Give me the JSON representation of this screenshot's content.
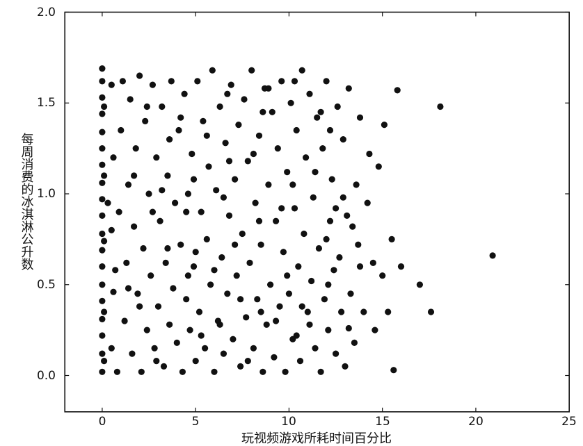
{
  "chart_data": {
    "type": "scatter",
    "title": "",
    "xlabel": "玩视频游戏所耗时间百分比",
    "ylabel": "每周消费的冰淇淋公升数",
    "xlim": [
      -2,
      25
    ],
    "ylim": [
      -0.2,
      2.0
    ],
    "xticks": [
      0,
      5,
      10,
      15,
      20,
      25
    ],
    "yticks": [
      0.0,
      0.5,
      1.0,
      1.5,
      2.0
    ],
    "xtick_labels": [
      "0",
      "5",
      "10",
      "15",
      "20",
      "25"
    ],
    "ytick_labels": [
      "0.0",
      "0.5",
      "1.0",
      "1.5",
      "2.0"
    ],
    "grid": false,
    "legend": "none",
    "marker_color": "#111111",
    "points": [
      [
        0.0,
        0.02
      ],
      [
        0.0,
        0.12
      ],
      [
        0.0,
        0.22
      ],
      [
        0.0,
        0.31
      ],
      [
        0.0,
        0.41
      ],
      [
        0.0,
        0.5
      ],
      [
        0.0,
        0.6
      ],
      [
        0.0,
        0.69
      ],
      [
        0.0,
        0.78
      ],
      [
        0.0,
        0.88
      ],
      [
        0.0,
        0.97
      ],
      [
        0.0,
        1.06
      ],
      [
        0.0,
        1.16
      ],
      [
        0.0,
        1.25
      ],
      [
        0.0,
        1.34
      ],
      [
        0.0,
        1.44
      ],
      [
        0.0,
        1.53
      ],
      [
        0.0,
        1.62
      ],
      [
        0.0,
        1.69
      ],
      [
        0.1,
        0.08
      ],
      [
        0.1,
        0.35
      ],
      [
        0.1,
        0.74
      ],
      [
        0.1,
        1.1
      ],
      [
        0.1,
        1.48
      ],
      [
        0.5,
        0.15
      ],
      [
        0.6,
        0.46
      ],
      [
        0.5,
        0.8
      ],
      [
        0.6,
        1.2
      ],
      [
        0.5,
        1.6
      ],
      [
        0.8,
        0.02
      ],
      [
        0.9,
        0.9
      ],
      [
        1.0,
        1.35
      ],
      [
        1.2,
        0.3
      ],
      [
        1.3,
        0.62
      ],
      [
        1.4,
        1.05
      ],
      [
        1.5,
        1.52
      ],
      [
        1.6,
        0.12
      ],
      [
        1.7,
        0.82
      ],
      [
        1.8,
        1.25
      ],
      [
        1.9,
        0.45
      ],
      [
        2.0,
        1.65
      ],
      [
        2.1,
        0.02
      ],
      [
        2.2,
        0.7
      ],
      [
        2.3,
        1.4
      ],
      [
        2.4,
        0.25
      ],
      [
        2.5,
        1.0
      ],
      [
        2.6,
        0.55
      ],
      [
        2.7,
        1.6
      ],
      [
        2.8,
        0.15
      ],
      [
        2.9,
        1.2
      ],
      [
        3.0,
        0.38
      ],
      [
        3.1,
        0.85
      ],
      [
        3.2,
        1.48
      ],
      [
        3.3,
        0.05
      ],
      [
        3.4,
        0.62
      ],
      [
        3.5,
        1.1
      ],
      [
        3.6,
        0.28
      ],
      [
        3.7,
        1.62
      ],
      [
        3.8,
        0.48
      ],
      [
        3.9,
        0.95
      ],
      [
        4.0,
        0.18
      ],
      [
        4.1,
        1.35
      ],
      [
        4.2,
        0.72
      ],
      [
        4.3,
        0.02
      ],
      [
        4.4,
        1.55
      ],
      [
        4.5,
        0.42
      ],
      [
        4.6,
        1.0
      ],
      [
        4.7,
        0.25
      ],
      [
        4.8,
        1.22
      ],
      [
        4.9,
        0.6
      ],
      [
        5.0,
        0.08
      ],
      [
        5.1,
        1.62
      ],
      [
        5.2,
        0.35
      ],
      [
        5.3,
        0.9
      ],
      [
        5.4,
        1.4
      ],
      [
        5.5,
        0.15
      ],
      [
        5.6,
        0.75
      ],
      [
        5.7,
        1.15
      ],
      [
        5.8,
        0.5
      ],
      [
        5.9,
        1.68
      ],
      [
        6.0,
        0.02
      ],
      [
        6.1,
        1.02
      ],
      [
        6.2,
        0.3
      ],
      [
        6.3,
        1.48
      ],
      [
        6.4,
        0.65
      ],
      [
        6.5,
        0.12
      ],
      [
        6.6,
        1.28
      ],
      [
        6.7,
        0.45
      ],
      [
        6.8,
        0.88
      ],
      [
        6.9,
        1.6
      ],
      [
        7.0,
        0.2
      ],
      [
        7.1,
        1.08
      ],
      [
        7.2,
        0.55
      ],
      [
        7.3,
        1.38
      ],
      [
        7.4,
        0.05
      ],
      [
        7.5,
        0.78
      ],
      [
        7.6,
        1.52
      ],
      [
        7.7,
        0.32
      ],
      [
        7.8,
        1.18
      ],
      [
        7.9,
        0.62
      ],
      [
        8.0,
        1.68
      ],
      [
        8.1,
        0.15
      ],
      [
        8.2,
        0.95
      ],
      [
        8.3,
        0.42
      ],
      [
        8.4,
        1.32
      ],
      [
        8.5,
        0.72
      ],
      [
        8.6,
        0.02
      ],
      [
        8.7,
        1.58
      ],
      [
        8.8,
        0.28
      ],
      [
        8.9,
        1.05
      ],
      [
        9.0,
        0.5
      ],
      [
        9.1,
        1.45
      ],
      [
        9.2,
        0.1
      ],
      [
        9.3,
        0.85
      ],
      [
        9.4,
        1.25
      ],
      [
        9.5,
        0.38
      ],
      [
        9.6,
        1.62
      ],
      [
        9.7,
        0.68
      ],
      [
        9.8,
        0.02
      ],
      [
        9.9,
        1.12
      ],
      [
        10.0,
        0.45
      ],
      [
        10.1,
        1.5
      ],
      [
        10.2,
        0.2
      ],
      [
        10.3,
        0.92
      ],
      [
        10.4,
        1.35
      ],
      [
        10.5,
        0.6
      ],
      [
        10.6,
        0.08
      ],
      [
        10.7,
        1.68
      ],
      [
        10.8,
        0.78
      ],
      [
        10.9,
        1.2
      ],
      [
        11.0,
        0.35
      ],
      [
        11.1,
        1.55
      ],
      [
        11.2,
        0.52
      ],
      [
        11.3,
        0.98
      ],
      [
        11.4,
        0.15
      ],
      [
        11.5,
        1.42
      ],
      [
        11.6,
        0.7
      ],
      [
        11.7,
        0.02
      ],
      [
        11.8,
        1.25
      ],
      [
        11.9,
        0.42
      ],
      [
        12.0,
        1.62
      ],
      [
        12.1,
        0.25
      ],
      [
        12.2,
        0.85
      ],
      [
        12.3,
        1.08
      ],
      [
        12.4,
        0.58
      ],
      [
        12.5,
        0.12
      ],
      [
        12.6,
        1.48
      ],
      [
        12.7,
        0.65
      ],
      [
        12.8,
        0.35
      ],
      [
        12.9,
        1.3
      ],
      [
        13.0,
        0.05
      ],
      [
        13.1,
        0.88
      ],
      [
        13.2,
        1.58
      ],
      [
        13.3,
        0.45
      ],
      [
        13.5,
        0.18
      ],
      [
        13.6,
        1.05
      ],
      [
        13.7,
        0.72
      ],
      [
        13.8,
        1.42
      ],
      [
        14.0,
        0.35
      ],
      [
        14.2,
        0.95
      ],
      [
        14.3,
        1.22
      ],
      [
        14.5,
        0.62
      ],
      [
        14.6,
        0.25
      ],
      [
        14.8,
        1.15
      ],
      [
        15.0,
        0.55
      ],
      [
        15.1,
        1.38
      ],
      [
        15.3,
        0.35
      ],
      [
        15.5,
        0.75
      ],
      [
        15.6,
        0.03
      ],
      [
        15.8,
        1.57
      ],
      [
        16.0,
        0.6
      ],
      [
        17.0,
        0.5
      ],
      [
        17.6,
        0.35
      ],
      [
        18.1,
        1.48
      ],
      [
        20.9,
        0.66
      ],
      [
        0.3,
        0.95
      ],
      [
        1.1,
        1.62
      ],
      [
        2.7,
        0.9
      ],
      [
        3.6,
        1.3
      ],
      [
        4.6,
        0.55
      ],
      [
        5.6,
        1.32
      ],
      [
        6.5,
        0.98
      ],
      [
        7.4,
        0.42
      ],
      [
        8.4,
        0.85
      ],
      [
        9.3,
        0.3
      ],
      [
        10.2,
        1.05
      ],
      [
        11.1,
        0.28
      ],
      [
        12.0,
        0.75
      ],
      [
        12.9,
        0.98
      ],
      [
        13.8,
        0.6
      ],
      [
        1.4,
        0.48
      ],
      [
        3.2,
        1.02
      ],
      [
        5.0,
        0.68
      ],
      [
        6.8,
        1.18
      ],
      [
        8.6,
        1.45
      ],
      [
        10.4,
        0.22
      ],
      [
        12.2,
        1.35
      ],
      [
        2.0,
        0.38
      ],
      [
        4.2,
        1.42
      ],
      [
        6.0,
        0.58
      ],
      [
        7.8,
        0.08
      ],
      [
        9.6,
        0.92
      ],
      [
        11.4,
        1.12
      ],
      [
        13.2,
        0.26
      ],
      [
        1.7,
        1.1
      ],
      [
        3.5,
        0.7
      ],
      [
        5.3,
        0.22
      ],
      [
        7.1,
        0.72
      ],
      [
        8.9,
        1.58
      ],
      [
        10.7,
        0.38
      ],
      [
        12.5,
        0.92
      ],
      [
        2.4,
        1.48
      ],
      [
        4.5,
        0.9
      ],
      [
        6.3,
        0.28
      ],
      [
        8.1,
        1.22
      ],
      [
        9.9,
        0.55
      ],
      [
        11.7,
        1.45
      ],
      [
        0.7,
        0.58
      ],
      [
        2.9,
        0.08
      ],
      [
        4.9,
        1.08
      ],
      [
        6.7,
        1.55
      ],
      [
        8.5,
        0.35
      ],
      [
        10.3,
        1.62
      ],
      [
        12.1,
        0.5
      ],
      [
        13.4,
        0.82
      ]
    ]
  }
}
